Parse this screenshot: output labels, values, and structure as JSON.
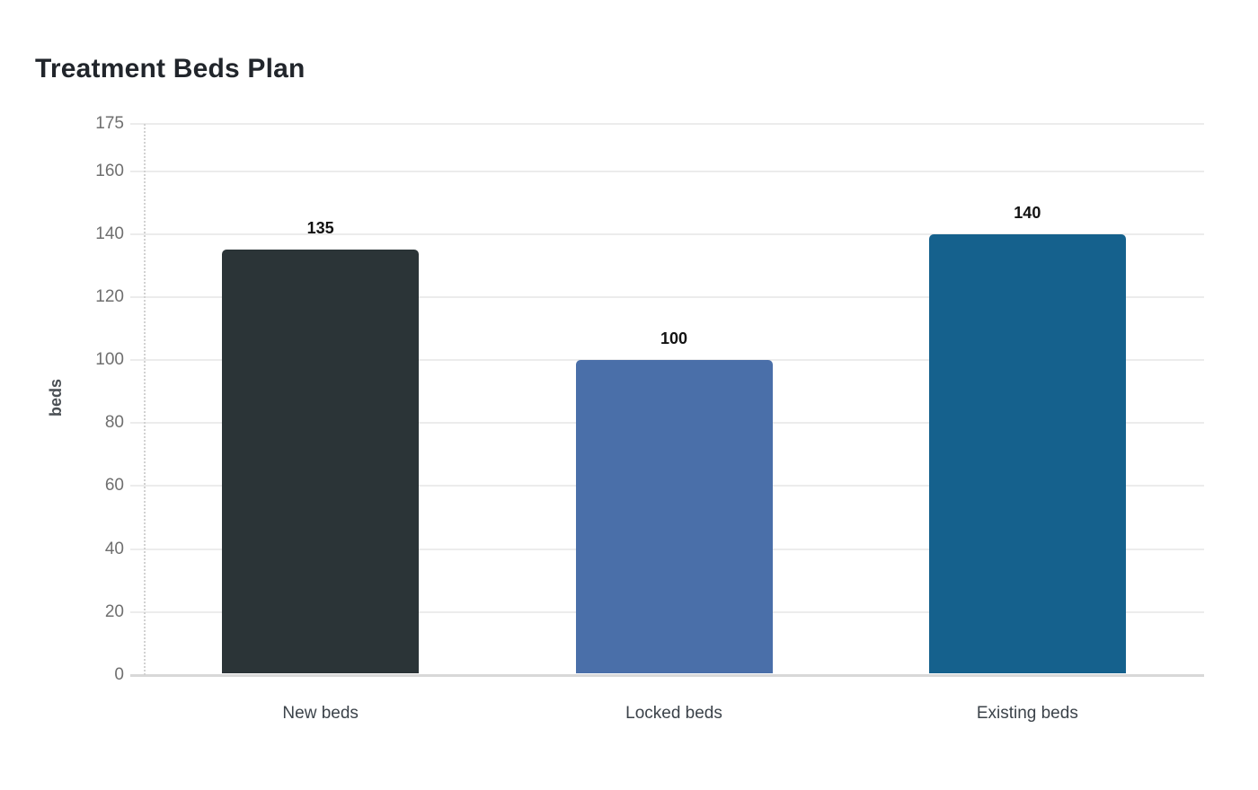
{
  "title": "Treatment Beds Plan",
  "chart_data": {
    "type": "bar",
    "title": "Treatment Beds Plan",
    "xlabel": "",
    "ylabel": "beds",
    "categories": [
      "New beds",
      "Locked beds",
      "Existing beds"
    ],
    "values": [
      135,
      100,
      140
    ],
    "data_labels": [
      "135",
      "100",
      "140"
    ],
    "bar_colors": [
      "#2b3437",
      "#4a6fa9",
      "#15618d"
    ],
    "ylim": [
      0,
      175
    ],
    "yticks": [
      0,
      20,
      40,
      60,
      80,
      100,
      120,
      140,
      160,
      175
    ],
    "grid": true,
    "legend": false
  },
  "colors": {
    "background": "#ffffff",
    "grid": "#ececec",
    "baseline": "#d8d8d8",
    "axis_dotted_border": "#d2d2d2",
    "tick_label": "#6f6f6f",
    "category_label": "#3c434a",
    "value_label": "#121212",
    "title": "#21252b",
    "y_axis_title": "#4a4f54"
  }
}
